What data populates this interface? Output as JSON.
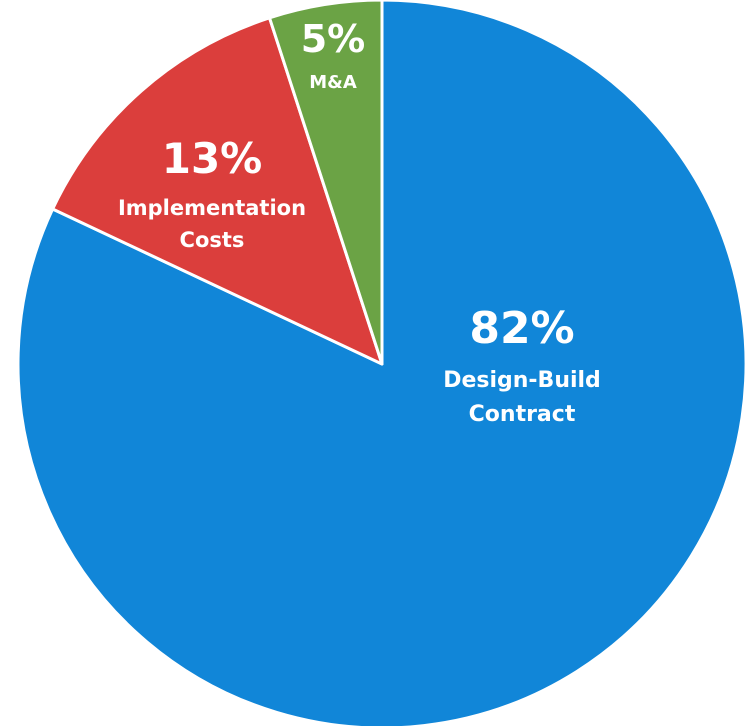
{
  "chart_data": {
    "type": "pie",
    "slices": [
      {
        "pct_label": "82%",
        "label_lines": [
          "Design-Build",
          "Contract"
        ],
        "value": 82,
        "color": "#1186d8"
      },
      {
        "pct_label": "13%",
        "label_lines": [
          "Implementation",
          "Costs"
        ],
        "value": 13,
        "color": "#db3e3c"
      },
      {
        "pct_label": "5%",
        "label_lines": [
          "M&A"
        ],
        "value": 5,
        "color": "#6ba345"
      }
    ],
    "start_direction": "12 o'clock",
    "direction": "clockwise",
    "legend": "none",
    "label_color": "#ffffff"
  }
}
